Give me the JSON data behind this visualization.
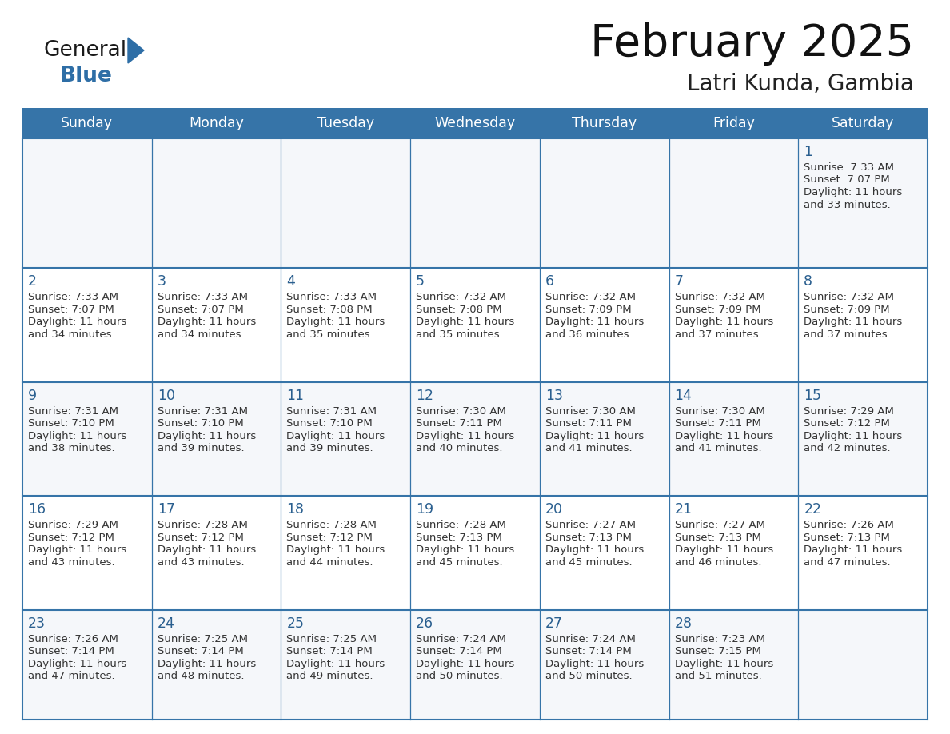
{
  "title": "February 2025",
  "subtitle": "Latri Kunda, Gambia",
  "header_bg": "#3674a8",
  "header_text_color": "#FFFFFF",
  "cell_border_color": "#3674a8",
  "day_number_color": "#2a5f8f",
  "detail_text_color": "#333333",
  "background_color": "#FFFFFF",
  "alt_row_color": "#f0f4f8",
  "days_of_week": [
    "Sunday",
    "Monday",
    "Tuesday",
    "Wednesday",
    "Thursday",
    "Friday",
    "Saturday"
  ],
  "calendar_data": [
    [
      null,
      null,
      null,
      null,
      null,
      null,
      {
        "day": "1",
        "sunrise": "7:33 AM",
        "sunset": "7:07 PM",
        "daylight1": "11 hours",
        "daylight2": "and 33 minutes."
      }
    ],
    [
      {
        "day": "2",
        "sunrise": "7:33 AM",
        "sunset": "7:07 PM",
        "daylight1": "11 hours",
        "daylight2": "and 34 minutes."
      },
      {
        "day": "3",
        "sunrise": "7:33 AM",
        "sunset": "7:07 PM",
        "daylight1": "11 hours",
        "daylight2": "and 34 minutes."
      },
      {
        "day": "4",
        "sunrise": "7:33 AM",
        "sunset": "7:08 PM",
        "daylight1": "11 hours",
        "daylight2": "and 35 minutes."
      },
      {
        "day": "5",
        "sunrise": "7:32 AM",
        "sunset": "7:08 PM",
        "daylight1": "11 hours",
        "daylight2": "and 35 minutes."
      },
      {
        "day": "6",
        "sunrise": "7:32 AM",
        "sunset": "7:09 PM",
        "daylight1": "11 hours",
        "daylight2": "and 36 minutes."
      },
      {
        "day": "7",
        "sunrise": "7:32 AM",
        "sunset": "7:09 PM",
        "daylight1": "11 hours",
        "daylight2": "and 37 minutes."
      },
      {
        "day": "8",
        "sunrise": "7:32 AM",
        "sunset": "7:09 PM",
        "daylight1": "11 hours",
        "daylight2": "and 37 minutes."
      }
    ],
    [
      {
        "day": "9",
        "sunrise": "7:31 AM",
        "sunset": "7:10 PM",
        "daylight1": "11 hours",
        "daylight2": "and 38 minutes."
      },
      {
        "day": "10",
        "sunrise": "7:31 AM",
        "sunset": "7:10 PM",
        "daylight1": "11 hours",
        "daylight2": "and 39 minutes."
      },
      {
        "day": "11",
        "sunrise": "7:31 AM",
        "sunset": "7:10 PM",
        "daylight1": "11 hours",
        "daylight2": "and 39 minutes."
      },
      {
        "day": "12",
        "sunrise": "7:30 AM",
        "sunset": "7:11 PM",
        "daylight1": "11 hours",
        "daylight2": "and 40 minutes."
      },
      {
        "day": "13",
        "sunrise": "7:30 AM",
        "sunset": "7:11 PM",
        "daylight1": "11 hours",
        "daylight2": "and 41 minutes."
      },
      {
        "day": "14",
        "sunrise": "7:30 AM",
        "sunset": "7:11 PM",
        "daylight1": "11 hours",
        "daylight2": "and 41 minutes."
      },
      {
        "day": "15",
        "sunrise": "7:29 AM",
        "sunset": "7:12 PM",
        "daylight1": "11 hours",
        "daylight2": "and 42 minutes."
      }
    ],
    [
      {
        "day": "16",
        "sunrise": "7:29 AM",
        "sunset": "7:12 PM",
        "daylight1": "11 hours",
        "daylight2": "and 43 minutes."
      },
      {
        "day": "17",
        "sunrise": "7:28 AM",
        "sunset": "7:12 PM",
        "daylight1": "11 hours",
        "daylight2": "and 43 minutes."
      },
      {
        "day": "18",
        "sunrise": "7:28 AM",
        "sunset": "7:12 PM",
        "daylight1": "11 hours",
        "daylight2": "and 44 minutes."
      },
      {
        "day": "19",
        "sunrise": "7:28 AM",
        "sunset": "7:13 PM",
        "daylight1": "11 hours",
        "daylight2": "and 45 minutes."
      },
      {
        "day": "20",
        "sunrise": "7:27 AM",
        "sunset": "7:13 PM",
        "daylight1": "11 hours",
        "daylight2": "and 45 minutes."
      },
      {
        "day": "21",
        "sunrise": "7:27 AM",
        "sunset": "7:13 PM",
        "daylight1": "11 hours",
        "daylight2": "and 46 minutes."
      },
      {
        "day": "22",
        "sunrise": "7:26 AM",
        "sunset": "7:13 PM",
        "daylight1": "11 hours",
        "daylight2": "and 47 minutes."
      }
    ],
    [
      {
        "day": "23",
        "sunrise": "7:26 AM",
        "sunset": "7:14 PM",
        "daylight1": "11 hours",
        "daylight2": "and 47 minutes."
      },
      {
        "day": "24",
        "sunrise": "7:25 AM",
        "sunset": "7:14 PM",
        "daylight1": "11 hours",
        "daylight2": "and 48 minutes."
      },
      {
        "day": "25",
        "sunrise": "7:25 AM",
        "sunset": "7:14 PM",
        "daylight1": "11 hours",
        "daylight2": "and 49 minutes."
      },
      {
        "day": "26",
        "sunrise": "7:24 AM",
        "sunset": "7:14 PM",
        "daylight1": "11 hours",
        "daylight2": "and 50 minutes."
      },
      {
        "day": "27",
        "sunrise": "7:24 AM",
        "sunset": "7:14 PM",
        "daylight1": "11 hours",
        "daylight2": "and 50 minutes."
      },
      {
        "day": "28",
        "sunrise": "7:23 AM",
        "sunset": "7:15 PM",
        "daylight1": "11 hours",
        "daylight2": "and 51 minutes."
      },
      null
    ]
  ],
  "logo_text_general": "General",
  "logo_text_blue": "Blue",
  "logo_color_general": "#1a1a1a",
  "logo_color_blue": "#2E6EA6",
  "logo_triangle_color": "#2E6EA6"
}
